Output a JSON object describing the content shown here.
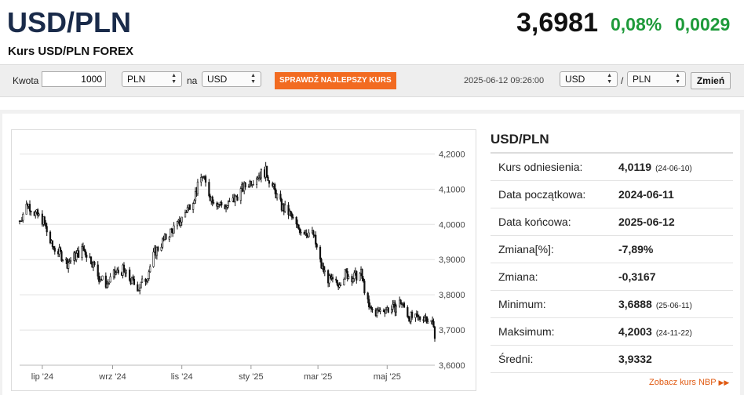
{
  "header": {
    "pair": "USD/PLN",
    "subtitle": "Kurs USD/PLN FOREX",
    "price": "3,6981",
    "change_pct": "0,08%",
    "change_abs": "0,0029"
  },
  "colors": {
    "accent": "#f26b21",
    "positive": "#1e9a3a",
    "title": "#1a2b4a"
  },
  "converter": {
    "amount_label": "Kwota",
    "amount_value": "1000",
    "from_currency": "PLN",
    "to_label": "na",
    "to_currency": "USD",
    "check_button": "SPRAWDŹ NAJLEPSZY KURS",
    "timestamp": "2025-06-12 09:26:00",
    "pair_base": "USD",
    "pair_separator": "/",
    "pair_quote": "PLN",
    "change_button": "Zmień"
  },
  "info": {
    "title": "USD/PLN",
    "rows": [
      {
        "label": "Kurs odniesienia:",
        "value": "4,0119",
        "date": "(24-06-10)"
      },
      {
        "label": "Data początkowa:",
        "value": "2024-06-11",
        "date": ""
      },
      {
        "label": "Data końcowa:",
        "value": "2025-06-12",
        "date": ""
      },
      {
        "label": "Zmiana[%]:",
        "value": "-7,89%",
        "date": ""
      },
      {
        "label": "Zmiana:",
        "value": "-0,3167",
        "date": ""
      },
      {
        "label": "Minimum:",
        "value": "3,6888",
        "date": "(25-06-11)"
      },
      {
        "label": "Maksimum:",
        "value": "4,2003",
        "date": "(24-11-22)"
      },
      {
        "label": "Średni:",
        "value": "3,9332",
        "date": ""
      }
    ],
    "more_link": "Zobacz kurs NBP",
    "more_icon": "double-chevron-right-icon"
  },
  "chart_data": {
    "type": "candlestick",
    "x_tick_labels": [
      "lip '24",
      "wrz '24",
      "lis '24",
      "sty '25",
      "mar '25",
      "maj '25"
    ],
    "x_tick_dates": [
      "2024-07-01",
      "2024-09-01",
      "2024-11-01",
      "2025-01-01",
      "2025-03-01",
      "2025-05-01"
    ],
    "x_range": [
      "2024-06-11",
      "2025-06-12"
    ],
    "y_tick_labels": [
      "3,6000",
      "3,7000",
      "3,8000",
      "3,9000",
      "4,0000",
      "4,1000",
      "4,2000"
    ],
    "y_ticks": [
      3.6,
      3.7,
      3.8,
      3.9,
      4.0,
      4.1,
      4.2
    ],
    "ylim": [
      3.6,
      4.25
    ],
    "y_axis_side": "right",
    "grid": "horizontal",
    "close_path": [
      [
        "2024-06-11",
        4.01
      ],
      [
        "2024-06-18",
        4.06
      ],
      [
        "2024-06-25",
        4.03
      ],
      [
        "2024-07-02",
        4.01
      ],
      [
        "2024-07-09",
        3.94
      ],
      [
        "2024-07-16",
        3.92
      ],
      [
        "2024-07-23",
        3.89
      ],
      [
        "2024-07-30",
        3.91
      ],
      [
        "2024-08-06",
        3.93
      ],
      [
        "2024-08-13",
        3.9
      ],
      [
        "2024-08-20",
        3.85
      ],
      [
        "2024-08-27",
        3.83
      ],
      [
        "2024-09-03",
        3.86
      ],
      [
        "2024-09-10",
        3.87
      ],
      [
        "2024-09-17",
        3.84
      ],
      [
        "2024-09-24",
        3.82
      ],
      [
        "2024-10-01",
        3.85
      ],
      [
        "2024-10-08",
        3.92
      ],
      [
        "2024-10-15",
        3.95
      ],
      [
        "2024-10-22",
        3.98
      ],
      [
        "2024-10-29",
        4.0
      ],
      [
        "2024-11-05",
        4.04
      ],
      [
        "2024-11-12",
        4.08
      ],
      [
        "2024-11-19",
        4.14
      ],
      [
        "2024-11-26",
        4.08
      ],
      [
        "2024-12-03",
        4.06
      ],
      [
        "2024-12-10",
        4.05
      ],
      [
        "2024-12-17",
        4.07
      ],
      [
        "2024-12-24",
        4.1
      ],
      [
        "2024-12-31",
        4.12
      ],
      [
        "2025-01-07",
        4.14
      ],
      [
        "2025-01-14",
        4.15
      ],
      [
        "2025-01-21",
        4.1
      ],
      [
        "2025-01-28",
        4.05
      ],
      [
        "2025-02-04",
        4.03
      ],
      [
        "2025-02-11",
        3.99
      ],
      [
        "2025-02-18",
        3.98
      ],
      [
        "2025-02-25",
        3.97
      ],
      [
        "2025-03-04",
        3.88
      ],
      [
        "2025-03-11",
        3.84
      ],
      [
        "2025-03-18",
        3.83
      ],
      [
        "2025-03-25",
        3.86
      ],
      [
        "2025-04-01",
        3.85
      ],
      [
        "2025-04-08",
        3.86
      ],
      [
        "2025-04-15",
        3.76
      ],
      [
        "2025-04-22",
        3.75
      ],
      [
        "2025-04-29",
        3.76
      ],
      [
        "2025-05-06",
        3.76
      ],
      [
        "2025-05-13",
        3.78
      ],
      [
        "2025-05-20",
        3.74
      ],
      [
        "2025-05-27",
        3.73
      ],
      [
        "2025-06-03",
        3.74
      ],
      [
        "2025-06-10",
        3.72
      ],
      [
        "2025-06-12",
        3.69
      ]
    ]
  }
}
